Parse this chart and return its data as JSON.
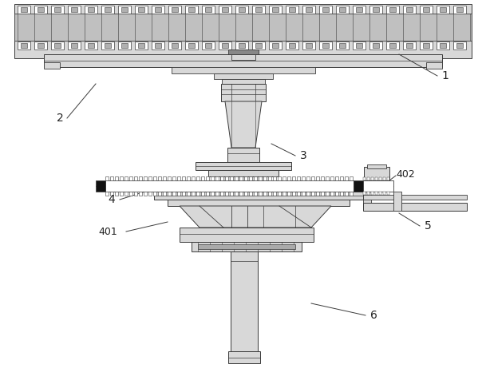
{
  "bg_color": "#ffffff",
  "line_color": "#3a3a3a",
  "fill_light": "#d8d8d8",
  "fill_mid": "#b0b0b0",
  "fill_white": "#ffffff",
  "figsize": [
    6.09,
    4.86
  ],
  "dpi": 100
}
